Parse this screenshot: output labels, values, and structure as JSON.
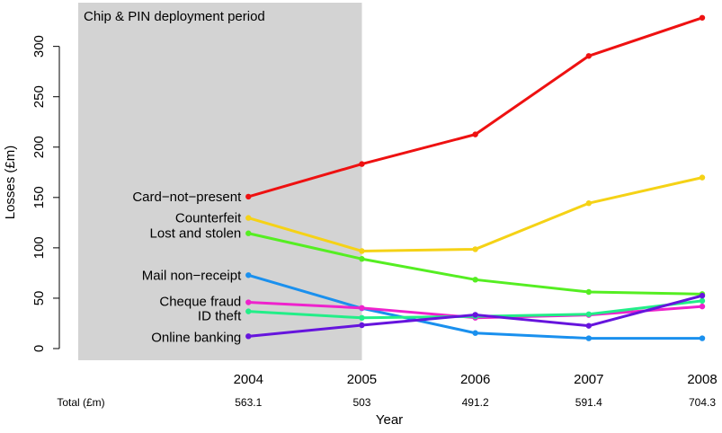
{
  "chart_data": {
    "type": "line",
    "xlabel": "Year",
    "ylabel": "Losses (£m)",
    "x": [
      2004,
      2005,
      2006,
      2007,
      2008
    ],
    "xlim": [
      2002.5,
      2008
    ],
    "ylim": [
      0,
      330
    ],
    "y_ticks": [
      0,
      50,
      100,
      150,
      200,
      250,
      300
    ],
    "grid": false,
    "legend": "none (series labelled at left end)",
    "shaded_region": {
      "x_range": [
        2002.5,
        2005
      ],
      "label": "Chip & PIN deployment period",
      "color": "#d3d3d3"
    },
    "series": [
      {
        "name": "Card−not−present",
        "color": "#ee1111",
        "values": [
          150.8,
          183.2,
          212.6,
          290.5,
          328.4
        ]
      },
      {
        "name": "Counterfeit",
        "color": "#f5d216",
        "values": [
          129.7,
          96.8,
          98.6,
          144.3,
          169.8
        ]
      },
      {
        "name": "Lost and stolen",
        "color": "#55ee22",
        "values": [
          114.4,
          89.0,
          68.4,
          56.2,
          54.1
        ]
      },
      {
        "name": "Mail non−receipt",
        "color": "#1a90ee",
        "values": [
          72.9,
          40.0,
          15.4,
          10.2,
          10.2
        ]
      },
      {
        "name": "Cheque fraud",
        "color": "#ee22cc",
        "values": [
          45.9,
          40.3,
          30.6,
          33.3,
          41.8
        ]
      },
      {
        "name": "ID theft",
        "color": "#22ee88",
        "values": [
          36.9,
          30.5,
          31.9,
          34.1,
          47.4
        ]
      },
      {
        "name": "Online banking",
        "color": "#6614dd",
        "values": [
          12.2,
          23.2,
          33.5,
          22.6,
          52.5
        ]
      }
    ],
    "totals": {
      "label": "Total (£m)",
      "values": [
        "563.1",
        "503",
        "491.2",
        "591.4",
        "704.3"
      ]
    }
  }
}
